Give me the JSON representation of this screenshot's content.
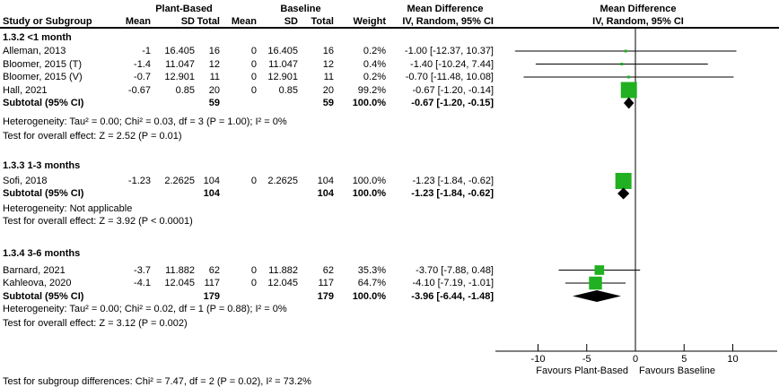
{
  "chart_data": {
    "type": "forest",
    "header": {
      "study_col": "Study or Subgroup",
      "group1": "Plant-Based",
      "group2": "Baseline",
      "effect_label": "Mean Difference",
      "method_label": "IV, Random, 95% CI",
      "sub_cols": [
        "Mean",
        "SD",
        "Total",
        "Mean",
        "SD",
        "Total",
        "Weight"
      ]
    },
    "axis": {
      "ticks": [
        "-10",
        "-5",
        "0",
        "5",
        "10"
      ],
      "tick_values": [
        -10,
        -5,
        0,
        5,
        10
      ],
      "favours_left": "Favours Plant-Based",
      "favours_right": "Favours Baseline"
    },
    "groups": [
      {
        "label": "1.3.2 <1 month",
        "studies": [
          {
            "name": "Alleman, 2013",
            "mean1": "-1",
            "sd1": "16.405",
            "total1": "16",
            "mean2": "0",
            "sd2": "16.405",
            "total2": "16",
            "weight": "0.2%",
            "ci_text": "-1.00 [-12.37, 10.37]",
            "est": -1.0,
            "lo": -12.37,
            "hi": 10.37,
            "weight_val": 0.2
          },
          {
            "name": "Bloomer, 2015 (T)",
            "mean1": "-1.4",
            "sd1": "11.047",
            "total1": "12",
            "mean2": "0",
            "sd2": "11.047",
            "total2": "12",
            "weight": "0.4%",
            "ci_text": "-1.40 [-10.24, 7.44]",
            "est": -1.4,
            "lo": -10.24,
            "hi": 7.44,
            "weight_val": 0.4
          },
          {
            "name": "Bloomer, 2015 (V)",
            "mean1": "-0.7",
            "sd1": "12.901",
            "total1": "11",
            "mean2": "0",
            "sd2": "12.901",
            "total2": "11",
            "weight": "0.2%",
            "ci_text": "-0.70 [-11.48, 10.08]",
            "est": -0.7,
            "lo": -11.48,
            "hi": 10.08,
            "weight_val": 0.2
          },
          {
            "name": "Hall, 2021",
            "mean1": "-0.67",
            "sd1": "0.85",
            "total1": "20",
            "mean2": "0",
            "sd2": "0.85",
            "total2": "20",
            "weight": "99.2%",
            "ci_text": "-0.67 [-1.20, -0.14]",
            "est": -0.67,
            "lo": -1.2,
            "hi": -0.14,
            "weight_val": 99.2
          }
        ],
        "subtotal": {
          "label": "Subtotal (95% CI)",
          "total1": "59",
          "total2": "59",
          "weight": "100.0%",
          "ci_text": "-0.67 [-1.20, -0.15]",
          "est": -0.67,
          "lo": -1.2,
          "hi": -0.15
        },
        "heterogeneity": "Heterogeneity: Tau² = 0.00; Chi² = 0.03, df = 3 (P = 1.00); I² = 0%",
        "overall": "Test for overall effect: Z = 2.52 (P = 0.01)"
      },
      {
        "label": "1.3.3 1-3 months",
        "studies": [
          {
            "name": "Sofi, 2018",
            "mean1": "-1.23",
            "sd1": "2.2625",
            "total1": "104",
            "mean2": "0",
            "sd2": "2.2625",
            "total2": "104",
            "weight": "100.0%",
            "ci_text": "-1.23 [-1.84, -0.62]",
            "est": -1.23,
            "lo": -1.84,
            "hi": -0.62,
            "weight_val": 100.0
          }
        ],
        "subtotal": {
          "label": "Subtotal (95% CI)",
          "total1": "104",
          "total2": "104",
          "weight": "100.0%",
          "ci_text": "-1.23 [-1.84, -0.62]",
          "est": -1.23,
          "lo": -1.84,
          "hi": -0.62
        },
        "heterogeneity": "Heterogeneity: Not applicable",
        "overall": "Test for overall effect: Z = 3.92 (P < 0.0001)"
      },
      {
        "label": "1.3.4 3-6 months",
        "studies": [
          {
            "name": "Barnard, 2021",
            "mean1": "-3.7",
            "sd1": "11.882",
            "total1": "62",
            "mean2": "0",
            "sd2": "11.882",
            "total2": "62",
            "weight": "35.3%",
            "ci_text": "-3.70 [-7.88, 0.48]",
            "est": -3.7,
            "lo": -7.88,
            "hi": 0.48,
            "weight_val": 35.3
          },
          {
            "name": "Kahleova, 2020",
            "mean1": "-4.1",
            "sd1": "12.045",
            "total1": "117",
            "mean2": "0",
            "sd2": "12.045",
            "total2": "117",
            "weight": "64.7%",
            "ci_text": "-4.10 [-7.19, -1.01]",
            "est": -4.1,
            "lo": -7.19,
            "hi": -1.01,
            "weight_val": 64.7
          }
        ],
        "subtotal": {
          "label": "Subtotal (95% CI)",
          "total1": "179",
          "total2": "179",
          "weight": "100.0%",
          "ci_text": "-3.96 [-6.44, -1.48]",
          "est": -3.96,
          "lo": -6.44,
          "hi": -1.48
        },
        "heterogeneity": "Heterogeneity: Tau² = 0.00; Chi² = 0.02, df = 1 (P = 0.88); I² = 0%",
        "overall": "Test for overall effect: Z = 3.12 (P = 0.002)"
      }
    ],
    "footer": "Test for subgroup differences: Chi² = 7.47, df = 2 (P = 0.02), I² = 73.2%",
    "colors": {
      "marker": "#21B021",
      "diamond": "#000000",
      "line": "#000000"
    }
  }
}
